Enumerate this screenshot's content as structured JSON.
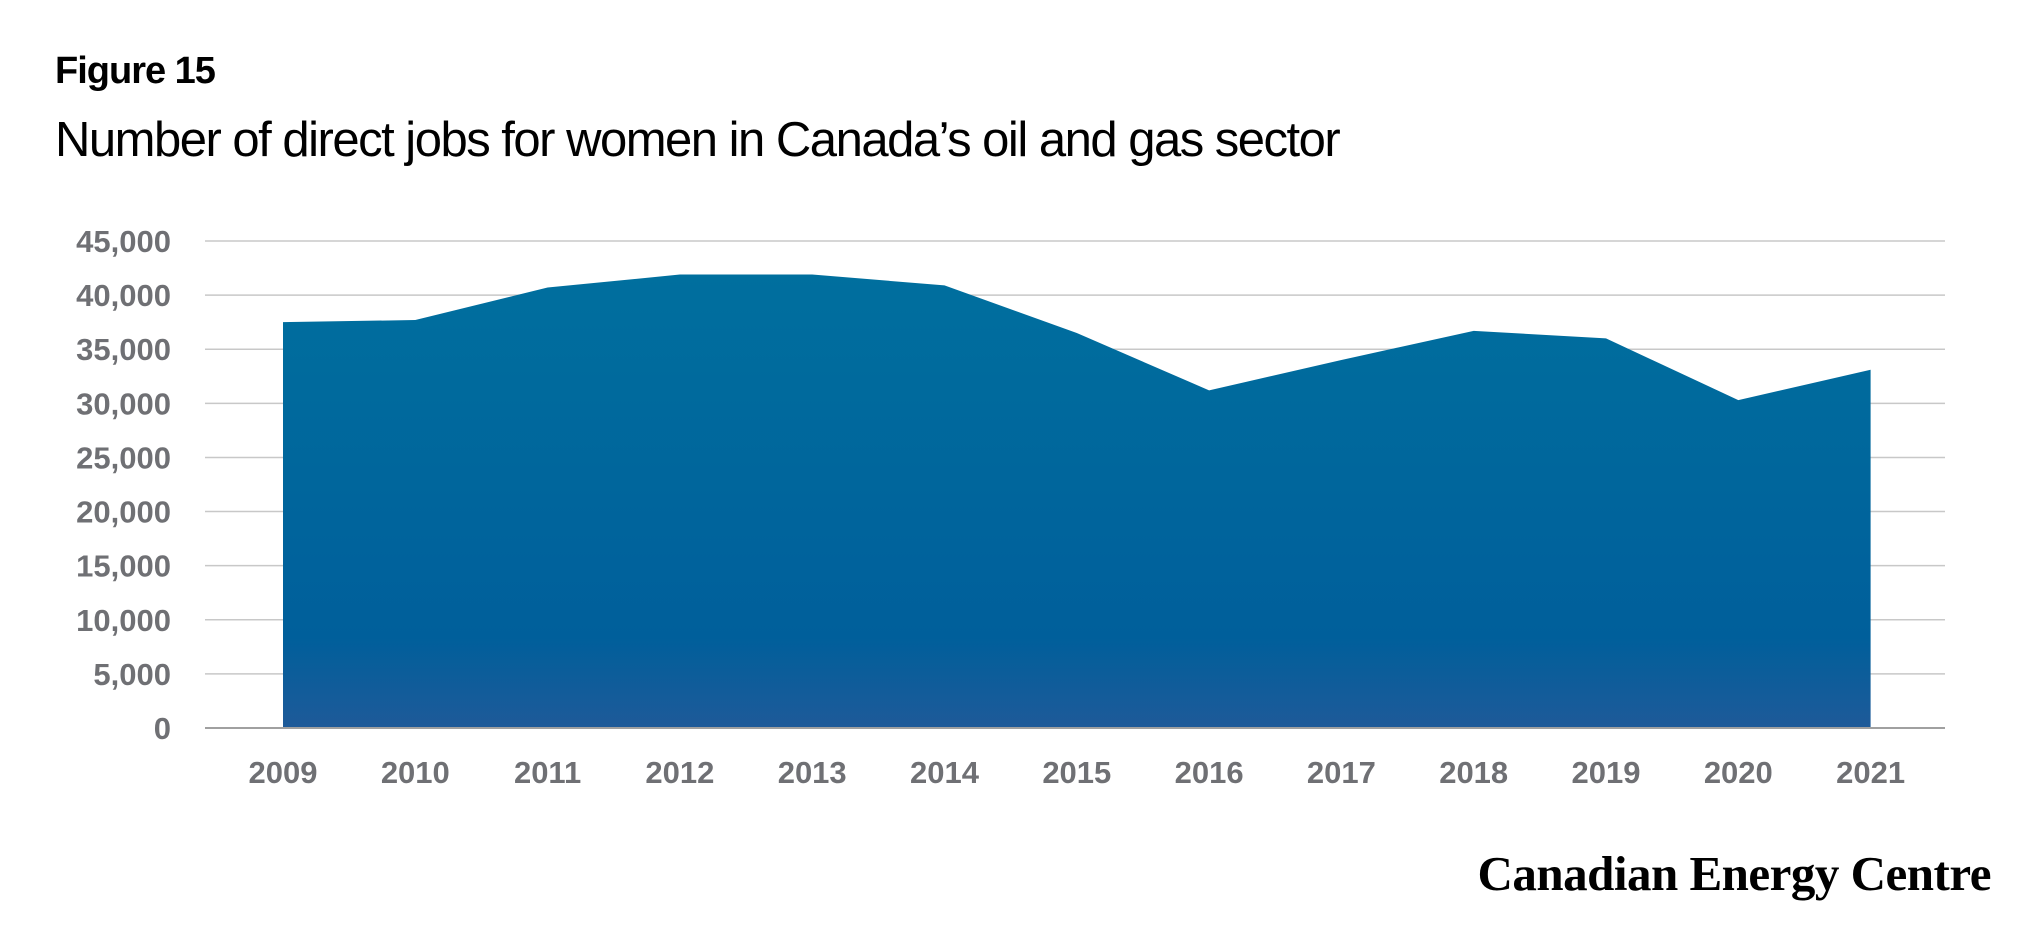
{
  "figure_label": "Figure 15",
  "title": "Number of direct jobs for women in Canada’s oil and gas sector",
  "brand": "Canadian Energy Centre",
  "colors": {
    "area_top": "#006f9e",
    "area_bottom": "#1e5a99",
    "gridline": "#c8c8c8",
    "axis": "#a0a0a0",
    "tick_text": "#6f7074"
  },
  "chart_data": {
    "type": "area",
    "categories": [
      "2009",
      "2010",
      "2011",
      "2012",
      "2013",
      "2014",
      "2015",
      "2016",
      "2017",
      "2018",
      "2019",
      "2020",
      "2021"
    ],
    "values": [
      37500,
      37700,
      40700,
      41900,
      41900,
      40900,
      36500,
      31200,
      34000,
      36700,
      36000,
      30300,
      33100
    ],
    "title": "Number of direct jobs for women in Canada’s oil and gas sector",
    "xlabel": "",
    "ylabel": "",
    "ylim": [
      0,
      45000
    ],
    "yticks": [
      0,
      5000,
      10000,
      15000,
      20000,
      25000,
      30000,
      35000,
      40000,
      45000
    ],
    "ytick_labels": [
      "0",
      "5,000",
      "10,000",
      "15,000",
      "20,000",
      "25,000",
      "30,000",
      "35,000",
      "40,000",
      "45,000"
    ],
    "grid": true,
    "legend": "none"
  }
}
